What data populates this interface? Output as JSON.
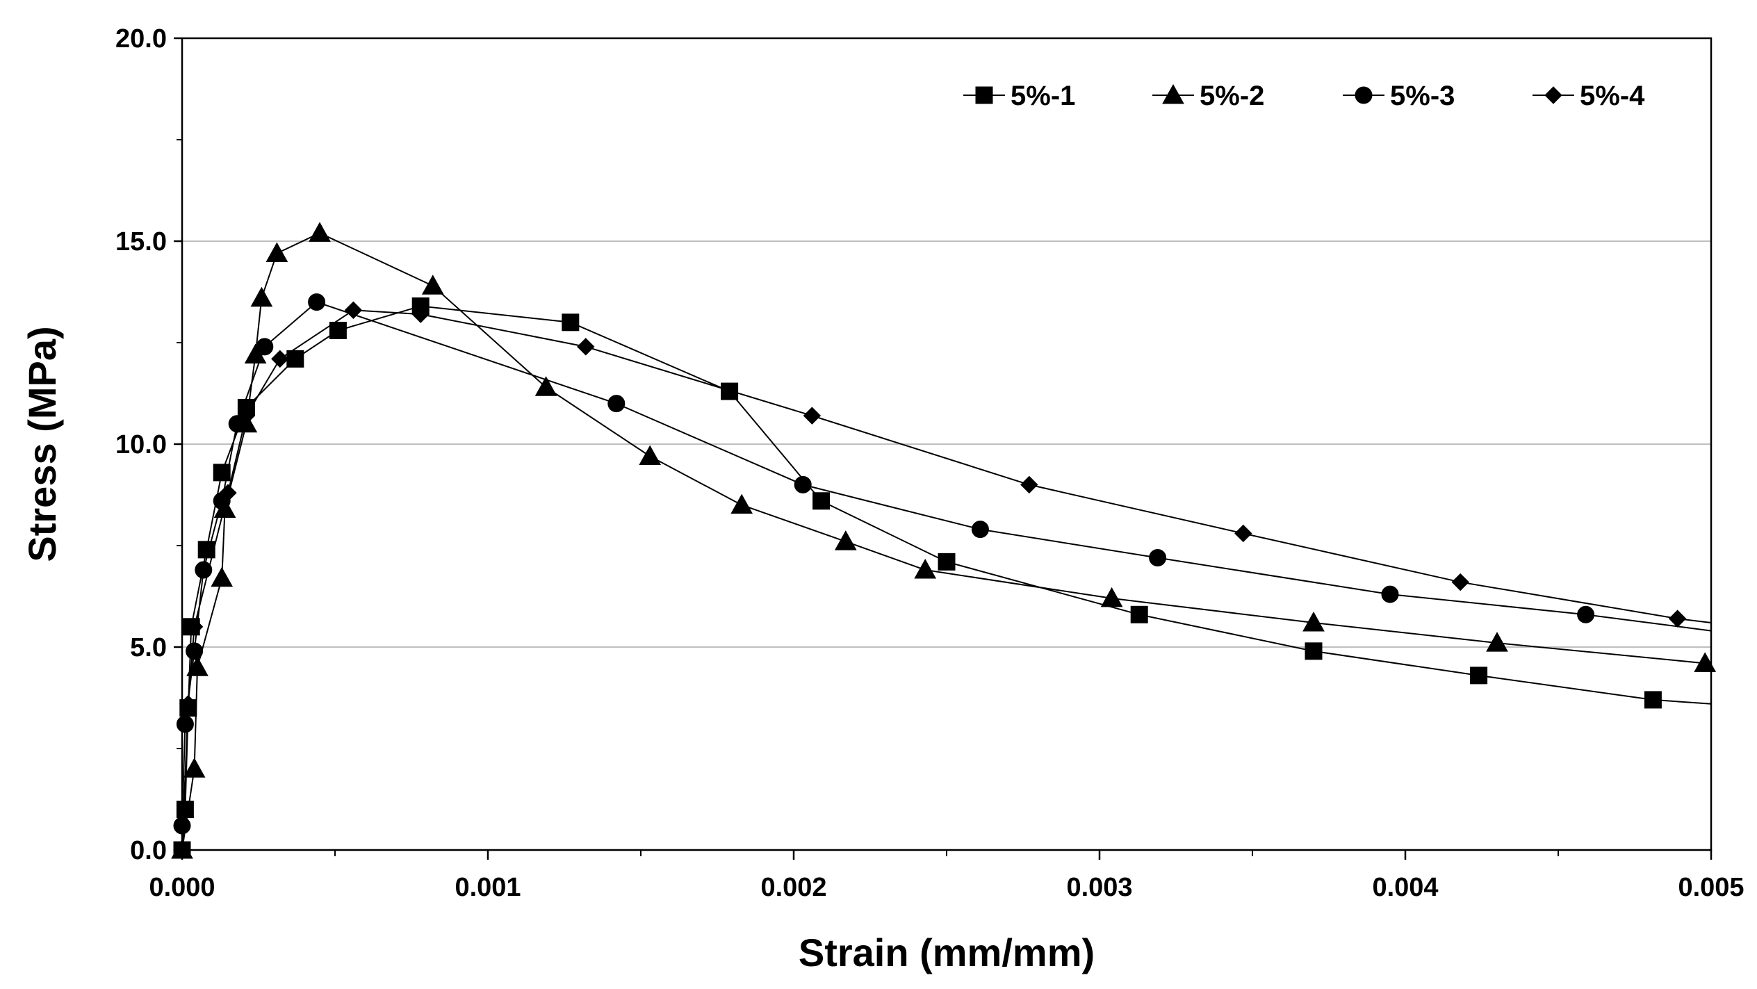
{
  "chart_data": {
    "type": "line",
    "title": "",
    "xlabel": "Strain (mm/mm)",
    "ylabel": "Stress (MPa)",
    "xlim": [
      0,
      0.005
    ],
    "ylim": [
      0,
      20
    ],
    "x_ticks": [
      0,
      0.001,
      0.002,
      0.003,
      0.004,
      0.005
    ],
    "x_tick_labels": [
      "0.000",
      "0.001",
      "0.002",
      "0.003",
      "0.004",
      "0.005"
    ],
    "y_ticks": [
      0,
      5,
      10,
      15,
      20
    ],
    "y_tick_labels": [
      "0.0",
      "5.0",
      "10.0",
      "15.0",
      "20.0"
    ],
    "grid": "horizontal",
    "legend_position": "top-right",
    "series": [
      {
        "name": "5%-1",
        "marker": "square",
        "x": [
          0.0,
          1e-05,
          2e-05,
          3e-05,
          8e-05,
          0.00013,
          0.00021,
          0.00037,
          0.00051,
          0.00078,
          0.00127,
          0.00179,
          0.00209,
          0.0025,
          0.00313,
          0.0037,
          0.00424,
          0.00481,
          0.005
        ],
        "y": [
          0.0,
          1.0,
          3.5,
          5.5,
          7.4,
          9.3,
          10.9,
          12.1,
          12.8,
          13.4,
          13.0,
          11.3,
          8.6,
          7.1,
          5.8,
          4.9,
          4.3,
          3.7,
          3.6
        ]
      },
      {
        "name": "5%-2",
        "marker": "triangle",
        "x": [
          0.0,
          4e-05,
          5e-05,
          0.00013,
          0.00014,
          0.00021,
          0.00024,
          0.00026,
          0.00031,
          0.00045,
          0.00082,
          0.00119,
          0.00153,
          0.00183,
          0.00217,
          0.00243,
          0.00304,
          0.0037,
          0.0043,
          0.00498
        ],
        "y": [
          0.0,
          2.0,
          4.5,
          6.7,
          8.4,
          10.5,
          12.2,
          13.6,
          14.7,
          15.2,
          13.9,
          11.4,
          9.7,
          8.5,
          7.6,
          6.9,
          6.2,
          5.6,
          5.1,
          4.6
        ]
      },
      {
        "name": "5%-3",
        "marker": "circle",
        "x": [
          0.0,
          0.0,
          1e-05,
          4e-05,
          7e-05,
          0.00013,
          0.00018,
          0.00027,
          0.00044,
          0.00142,
          0.00203,
          0.00261,
          0.00319,
          0.00395,
          0.00459,
          0.005
        ],
        "y": [
          0.0,
          0.6,
          3.1,
          4.9,
          6.9,
          8.6,
          10.5,
          12.4,
          13.5,
          11.0,
          9.0,
          7.9,
          7.2,
          6.3,
          5.8,
          5.4
        ]
      },
      {
        "name": "5%-4",
        "marker": "diamond",
        "x": [
          0.0,
          2e-05,
          4e-05,
          0.00015,
          0.00021,
          0.00032,
          0.00056,
          0.00078,
          0.00132,
          0.00206,
          0.00277,
          0.00347,
          0.00418,
          0.00489,
          0.005
        ],
        "y": [
          0.0,
          3.6,
          5.5,
          8.8,
          10.7,
          12.1,
          13.3,
          13.2,
          12.4,
          10.7,
          9.0,
          7.8,
          6.6,
          5.7,
          5.6
        ]
      }
    ]
  }
}
